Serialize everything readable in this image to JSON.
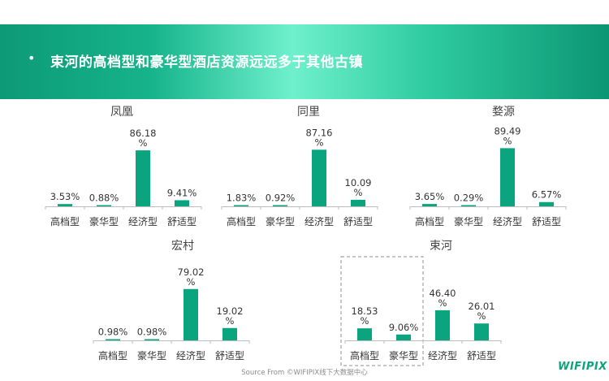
{
  "header": {
    "bullet": "•",
    "title": "束河的高档型和豪华型酒店资源远远多于其他古镇"
  },
  "chart_data": [
    {
      "type": "bar",
      "title": "凤凰",
      "categories": [
        "高档型",
        "豪华型",
        "经济型",
        "舒适型"
      ],
      "values": [
        3.53,
        0.88,
        86.18,
        9.41
      ],
      "labels": [
        [
          "3.53%"
        ],
        [
          "0.88%"
        ],
        [
          "86.18",
          "%"
        ],
        [
          "9.41%"
        ]
      ]
    },
    {
      "type": "bar",
      "title": "同里",
      "categories": [
        "高档型",
        "豪华型",
        "经济型",
        "舒适型"
      ],
      "values": [
        1.83,
        0.92,
        87.16,
        10.09
      ],
      "labels": [
        [
          "1.83%"
        ],
        [
          "0.92%"
        ],
        [
          "87.16",
          "%"
        ],
        [
          "10.09",
          "%"
        ]
      ]
    },
    {
      "type": "bar",
      "title": "婺源",
      "categories": [
        "高档型",
        "豪华型",
        "经济型",
        "舒适型"
      ],
      "values": [
        3.65,
        0.29,
        89.49,
        6.57
      ],
      "labels": [
        [
          "3.65%"
        ],
        [
          "0.29%"
        ],
        [
          "89.49",
          "%"
        ],
        [
          "6.57%"
        ]
      ]
    },
    {
      "type": "bar",
      "title": "宏村",
      "categories": [
        "高档型",
        "豪华型",
        "经济型",
        "舒适型"
      ],
      "values": [
        0.98,
        0.98,
        79.02,
        19.02
      ],
      "labels": [
        [
          "0.98%"
        ],
        [
          "0.98%"
        ],
        [
          "79.02",
          "%"
        ],
        [
          "19.02",
          "%"
        ]
      ]
    },
    {
      "type": "bar",
      "title": "束河",
      "categories": [
        "高档型",
        "豪华型",
        "经济型",
        "舒适型"
      ],
      "values": [
        18.53,
        9.06,
        46.4,
        26.01
      ],
      "labels": [
        [
          "18.53",
          "%"
        ],
        [
          "9.06%"
        ],
        [
          "46.40",
          "%"
        ],
        [
          "26.01",
          "%"
        ]
      ],
      "highlighted_categories": [
        "高档型",
        "豪华型"
      ]
    }
  ],
  "colors": {
    "bar": "#0aa57f",
    "axis": "#bdbdbd",
    "highlight_border": "#8c8c8c"
  },
  "footer": {
    "source": "Source From ©WIFIPIX线下大数据中心",
    "logo": "WIFIPIX"
  }
}
